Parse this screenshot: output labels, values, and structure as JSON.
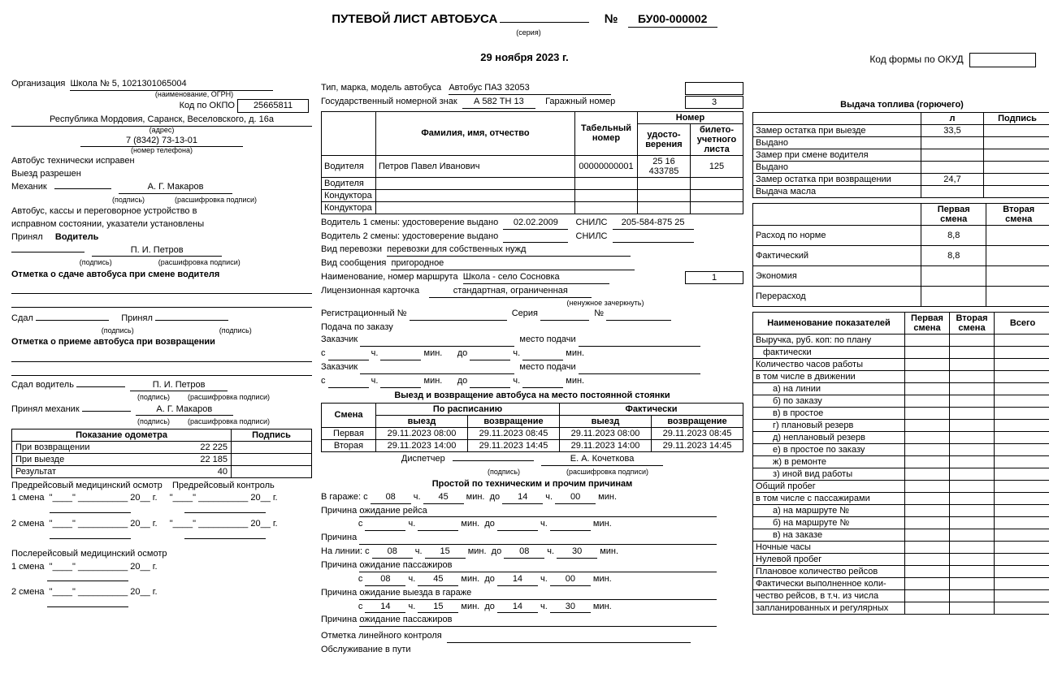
{
  "header": {
    "title": "ПУТЕВОЙ ЛИСТ АВТОБУСА",
    "series_label": "(серия)",
    "number_sign": "№",
    "number": "БУ00-000002",
    "date": "29 ноября 2023 г.",
    "okud_label": "Код формы по ОКУД"
  },
  "org": {
    "org_label": "Организация",
    "name": "Школа № 5, 1021301065004",
    "name_caption": "(наименование, ОГРН)",
    "okpo_label": "Код по ОКПО",
    "okpo": "25665811",
    "address": "Республика Мордовия, Саранск, Веселовского, д. 16а",
    "address_caption": "(адрес)",
    "phone": "7 (8342) 73-13-01",
    "phone_caption": "(номер телефона)"
  },
  "tech": {
    "l1": "Автобус технически исправен",
    "l2": "Выезд разрешен",
    "mech_label": "Механик",
    "mech_name": "А. Г. Макаров",
    "sig_caption": "(подпись)",
    "name_caption": "(расшифровка подписи)",
    "l3": "Автобус, кассы и переговорное устройство в",
    "l4": "исправном состоянии, указатели установлены",
    "accepted_label": "Принял",
    "driver_label": "Водитель",
    "driver_name": "П. И. Петров",
    "shift_change_label": "Отметка о сдаче автобуса при смене водителя",
    "gave_label": "Сдал",
    "received_label": "Принял",
    "return_label": "Отметка о приеме автобуса при возвращении",
    "gave_driver_label": "Сдал   водитель",
    "received_mech_label": "Принял   механик"
  },
  "odo": {
    "h1": "Показание одометра",
    "h2": "Подпись",
    "r1": "При возвращении",
    "v1": "22 225",
    "r2": "При выезде",
    "v2": "22 185",
    "r3": "Результат",
    "v3": "40"
  },
  "med": {
    "pre_label": "Предрейсовый медицинский осмотр",
    "ctrl_label": "Предрейсовый контроль",
    "s1": "1 смена",
    "s2": "2 смена",
    "q": "\"____\" __________ 20__ г.",
    "post_label": "Послерейсовый медицинский осмотр"
  },
  "bus": {
    "type_label": "Тип, марка, модель автобуса",
    "type": "Автобус ПАЗ 32053",
    "plate_label": "Государственный номерной знак",
    "plate": "А 582 ТН 13",
    "garage_label": "Гаражный номер",
    "garage": "3"
  },
  "pers": {
    "fio": "Фамилия, имя, отчество",
    "tab": "Табельный номер",
    "num": "Номер",
    "lic": "удосто-верения",
    "tick": "билето-учетного листа",
    "driver_row": "Водителя",
    "cond_row": "Кондуктора",
    "d1_name": "Петров Павел Иванович",
    "d1_tab": "00000000001",
    "d1_lic": "25 16 433785",
    "d1_tick": "125"
  },
  "drv": {
    "d1_label": "Водитель 1 смены: удостоверение выдано",
    "d1_date": "02.02.2009",
    "snils_label": "СНИЛС",
    "d1_snils": "205-584-875 25",
    "d2_label": "Водитель 2 смены: удостоверение выдано",
    "trans_type_label": "Вид перевозки",
    "trans_type": "перевозки для собственных нужд",
    "msg_type_label": "Вид сообщения",
    "msg_type": "пригородное",
    "route_label": "Наименование,  номер маршрута",
    "route": "Школа - село Сосновка",
    "route_num": "1",
    "lic_card_label": "Лицензионная карточка",
    "lic_card_val": "стандартная, ограниченная",
    "lic_card_caption": "(ненужное зачеркнуть)",
    "reg_label": "Регистрационный №",
    "series_label": "Серия",
    "num_label": "№",
    "order_label": "Подача по заказу",
    "customer_label": "Заказчик",
    "place_label": "место подачи",
    "s_label": "с",
    "h_label": "ч.",
    "min_label": "мин.",
    "to_label": "до"
  },
  "trip": {
    "title": "Выезд и возвращение автобуса на место постоянной стоянки",
    "shift": "Смена",
    "sched": "По расписанию",
    "fact": "Фактически",
    "dep": "выезд",
    "ret": "возвращение",
    "r1_label": "Первая",
    "r2_label": "Вторая",
    "r1_dep": "29.11.2023 08:00",
    "r1_ret": "29.11.2023 08:45",
    "r2_dep": "29.11.2023 14:00",
    "r2_ret": "29.11.2023 14:45",
    "disp_label": "Диспетчер",
    "disp_name": "Е. А. Кочеткова"
  },
  "idle": {
    "title": "Простой по техническим и прочим причинам",
    "garage_label": "В гараже:",
    "reason_label": "Причина",
    "online_label": "На линии:",
    "r1_reason": "ожидание рейса",
    "r3_reason": "ожидание пассажиров",
    "r5_reason": "ожидание выезда в гараже",
    "r6_reason": "ожидание пассажиров",
    "t1": {
      "fh": "08",
      "fm": "45",
      "th": "14",
      "tm": "00"
    },
    "t3": {
      "fh": "08",
      "fm": "15",
      "th": "08",
      "tm": "30"
    },
    "t4": {
      "fh": "08",
      "fm": "45",
      "th": "14",
      "tm": "00"
    },
    "t5": {
      "fh": "14",
      "fm": "15",
      "th": "14",
      "tm": "30"
    },
    "line_ctrl": "Отметка линейного контроля",
    "svc": "Обслуживание в пути"
  },
  "fuel": {
    "title": "Выдача топлива (горючего)",
    "h_l": "л",
    "h_sig": "Подпись",
    "r1": "Замер остатка при выезде",
    "v1": "33,5",
    "r2": "Выдано",
    "r3": "Замер при смене водителя",
    "r4": "Выдано",
    "r5": "Замер остатка при возвращении",
    "v5": "24,7",
    "r6": "Выдача масла"
  },
  "cons": {
    "h1": "Первая смена",
    "h2": "Вторая смена",
    "r1": "Расход по норме",
    "v1": "8,8",
    "r2": "Фактический",
    "v2": "8,8",
    "r3": "Экономия",
    "r4": "Перерасход"
  },
  "ind": {
    "hname": "Наименование показателей",
    "h1": "Первая смена",
    "h2": "Вторая смена",
    "htot": "Всего",
    "rows": [
      "Выручка, руб. коп: по плану",
      "фактически",
      "Количество часов работы",
      "в том числе в движении",
      "а) на линии",
      "б) по заказу",
      "в) в простое",
      "г) плановый резерв",
      "д) неплановый резерв",
      "е) в простое по заказу",
      "ж) в ремонте",
      "з) иной вид работы",
      "Общий пробег",
      "в том числе с пассажирами",
      "а) на маршруте №",
      "б) на маршруте №",
      "в) на заказе",
      "Ночные часы",
      "Нулевой пробег",
      "Плановое количество рейсов",
      "Фактически выполненное коли-",
      "чество рейсов, в т.ч. из числа",
      "запланированных и регулярных"
    ],
    "indent": [
      0,
      1,
      0,
      0,
      2,
      2,
      2,
      2,
      2,
      2,
      2,
      2,
      0,
      0,
      2,
      2,
      2,
      0,
      0,
      0,
      0,
      0,
      0
    ]
  }
}
